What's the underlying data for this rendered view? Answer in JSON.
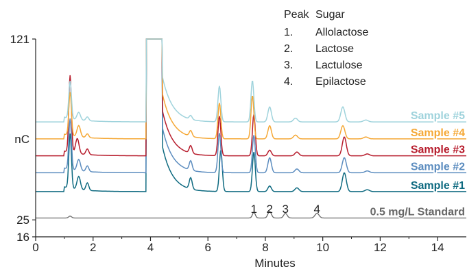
{
  "chart_data": {
    "type": "line",
    "xlabel": "Minutes",
    "ylabel": "nC",
    "xlim": [
      0,
      15
    ],
    "ylim": [
      16,
      121
    ],
    "y_axis_marks": [
      "121",
      "25",
      "16"
    ],
    "xticks": [
      0,
      2,
      4,
      6,
      8,
      10,
      12,
      14
    ],
    "grid": false,
    "legend": {
      "header": [
        "Peak",
        "Sugar"
      ],
      "entries": [
        {
          "num": "1.",
          "name": "Allolactose"
        },
        {
          "num": "2.",
          "name": "Lactose"
        },
        {
          "num": "3.",
          "name": "Lactulose"
        },
        {
          "num": "4.",
          "name": "Epilactose"
        }
      ],
      "placement": "top-right"
    },
    "peak_labels": [
      {
        "text": "1",
        "x": 7.6
      },
      {
        "text": "2",
        "x": 8.15
      },
      {
        "text": "3",
        "x": 8.7
      },
      {
        "text": "4",
        "x": 9.8
      }
    ],
    "series": [
      {
        "name": "Sample #5",
        "color": "#9fd3dc",
        "baseline": 77,
        "peaks": [
          [
            1.2,
            20,
            0.045
          ],
          [
            1.5,
            4,
            0.06
          ],
          [
            1.8,
            2,
            0.05
          ],
          [
            5.4,
            2,
            0.05
          ],
          [
            6.4,
            19,
            0.05
          ],
          [
            7.55,
            22,
            0.05
          ],
          [
            8.15,
            8,
            0.06
          ],
          [
            9.05,
            2,
            0.07
          ],
          [
            10.7,
            8,
            0.07
          ],
          [
            11.5,
            1,
            0.08
          ]
        ]
      },
      {
        "name": "Sample #4",
        "color": "#f5a836",
        "baseline": 68,
        "peaks": [
          [
            1.2,
            23,
            0.045
          ],
          [
            1.5,
            6,
            0.06
          ],
          [
            1.8,
            2,
            0.05
          ],
          [
            5.4,
            3,
            0.05
          ],
          [
            6.4,
            19,
            0.05
          ],
          [
            7.55,
            23,
            0.05
          ],
          [
            8.15,
            7,
            0.06
          ],
          [
            9.05,
            2,
            0.07
          ],
          [
            10.7,
            7,
            0.07
          ],
          [
            11.5,
            1,
            0.08
          ]
        ]
      },
      {
        "name": "Sample #3",
        "color": "#b71c2c",
        "baseline": 59,
        "peaks": [
          [
            1.2,
            41,
            0.045
          ],
          [
            1.45,
            8,
            0.06
          ],
          [
            1.8,
            3,
            0.05
          ],
          [
            5.4,
            4,
            0.05
          ],
          [
            6.4,
            21,
            0.05
          ],
          [
            7.6,
            22,
            0.05
          ],
          [
            8.15,
            3,
            0.06
          ],
          [
            9.1,
            2,
            0.07
          ],
          [
            10.75,
            10,
            0.07
          ],
          [
            11.55,
            1,
            0.08
          ]
        ]
      },
      {
        "name": "Sample #2",
        "color": "#5b8cbf",
        "baseline": 50,
        "peaks": [
          [
            1.2,
            27,
            0.045
          ],
          [
            1.5,
            6,
            0.06
          ],
          [
            1.8,
            3,
            0.05
          ],
          [
            5.4,
            5,
            0.05
          ],
          [
            6.4,
            21,
            0.05
          ],
          [
            7.6,
            20,
            0.05
          ],
          [
            8.15,
            8,
            0.06
          ],
          [
            9.1,
            2,
            0.07
          ],
          [
            10.75,
            8,
            0.07
          ],
          [
            11.55,
            1,
            0.08
          ]
        ]
      },
      {
        "name": "Sample #1",
        "color": "#0e6a80",
        "baseline": 40,
        "peaks": [
          [
            1.2,
            29,
            0.045
          ],
          [
            1.5,
            7,
            0.06
          ],
          [
            1.8,
            4,
            0.05
          ],
          [
            5.4,
            6,
            0.05
          ],
          [
            6.45,
            22,
            0.05
          ],
          [
            7.6,
            21,
            0.05
          ],
          [
            8.15,
            3,
            0.06
          ],
          [
            9.1,
            2,
            0.07
          ],
          [
            10.75,
            10,
            0.07
          ],
          [
            11.55,
            1,
            0.08
          ]
        ]
      },
      {
        "name": "0.5 mg/L Standard",
        "color": "#666666",
        "baseline": 26,
        "peaks": [
          [
            1.2,
            1,
            0.05
          ],
          [
            7.6,
            3,
            0.05
          ],
          [
            8.15,
            3.5,
            0.06
          ],
          [
            8.7,
            2.5,
            0.06
          ],
          [
            9.8,
            2.5,
            0.07
          ]
        ]
      }
    ],
    "void_peak": {
      "start": 3.85,
      "end": 4.4,
      "note": "off-scale"
    }
  }
}
